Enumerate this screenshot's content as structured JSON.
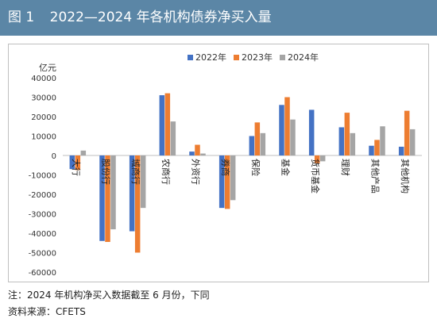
{
  "header": {
    "figure_label": "图 1",
    "title": "2022—2024 年各机构债券净买入量"
  },
  "notes": {
    "note": "注：2024 年机构净买入数据截至 6 月份，下同",
    "source": "资料来源：CFETS"
  },
  "chart_data": {
    "type": "bar",
    "y_unit": "亿元",
    "ylim": [
      -60000,
      40000
    ],
    "y_ticks": [
      40000,
      30000,
      20000,
      10000,
      0,
      -10000,
      -20000,
      -30000,
      -40000,
      -50000,
      -60000
    ],
    "grid": false,
    "legend_position": "top-right",
    "categories": [
      "大行",
      "股份行",
      "城商行",
      "农商行",
      "外资行",
      "券商",
      "保险",
      "基金",
      "货币基金",
      "理财",
      "其他产品",
      "其他机构"
    ],
    "series": [
      {
        "name": "2022年",
        "color": "#4472c4",
        "values": [
          -7000,
          -44000,
          -39000,
          31000,
          2000,
          -27000,
          10000,
          26000,
          23500,
          14500,
          5000,
          4500
        ]
      },
      {
        "name": "2023年",
        "color": "#ed7d31",
        "values": [
          -7500,
          -44500,
          -50000,
          32000,
          5500,
          -27500,
          17000,
          30000,
          -4000,
          22000,
          8000,
          23000
        ]
      },
      {
        "name": "2024年",
        "color": "#a5a5a5",
        "values": [
          2500,
          -38000,
          -27000,
          17500,
          1000,
          -23000,
          11500,
          18500,
          -3000,
          11500,
          15000,
          13500
        ]
      }
    ]
  }
}
